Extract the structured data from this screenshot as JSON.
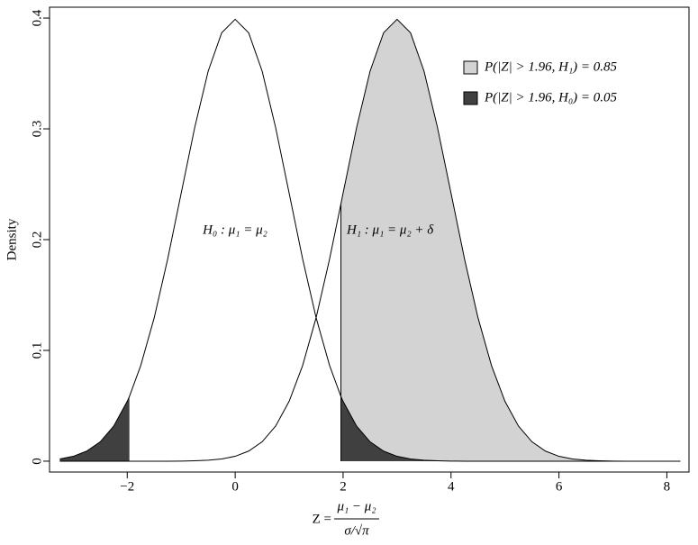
{
  "chart_data": {
    "type": "density",
    "ylabel": "Density",
    "xlabel": {
      "lhs": "Z =",
      "numerator": "μ₁ − μ₂",
      "denominator": "σ/√π"
    },
    "annotations": [
      "H₀ : μ₁ = μ₂",
      "H₁ : μ₁ = μ₂ + δ"
    ],
    "critical_value": 1.96,
    "x": [
      -3.25,
      -3,
      -2.75,
      -2.5,
      -2.25,
      -2,
      -1.96,
      -1.75,
      -1.5,
      -1.25,
      -1,
      -0.75,
      -0.5,
      -0.25,
      0,
      0.25,
      0.5,
      0.75,
      1,
      1.25,
      1.5,
      1.75,
      1.96,
      2,
      2.25,
      2.5,
      2.75,
      3,
      3.25,
      3.5,
      3.75,
      4,
      4.25,
      4.5,
      4.75,
      5,
      5.25,
      5.5,
      5.75,
      6,
      6.25,
      6.5,
      6.75,
      7,
      7.25,
      7.5,
      7.75,
      8,
      8.25
    ],
    "series": [
      {
        "name": "P(|Z| > 1.96, H₀) = 0.05",
        "color": "#404040",
        "shade": "both-tails",
        "values": [
          0.002,
          0.0044,
          0.0091,
          0.0175,
          0.0317,
          0.054,
          0.0584,
          0.0863,
          0.1295,
          0.1826,
          0.242,
          0.3011,
          0.3521,
          0.3867,
          0.3989,
          0.3867,
          0.3521,
          0.3011,
          0.242,
          0.1826,
          0.1295,
          0.0863,
          0.0584,
          0.054,
          0.0317,
          0.0175,
          0.0091,
          0.0044,
          0.002,
          0.0009,
          0.0004,
          0.0001,
          0,
          0,
          0,
          0,
          0,
          0,
          0,
          0,
          0,
          0,
          0,
          0,
          0,
          0,
          0,
          0,
          0
        ]
      },
      {
        "name": "P(|Z| > 1.96, H₁) = 0.85",
        "color": "#d3d3d3",
        "shade": "upper-tail",
        "values": [
          0,
          0,
          0,
          0,
          0,
          0,
          0,
          0,
          0,
          0,
          0.0001,
          0.0004,
          0.0009,
          0.002,
          0.0044,
          0.0091,
          0.0175,
          0.0317,
          0.054,
          0.0863,
          0.1295,
          0.1826,
          0.2323,
          0.242,
          0.3011,
          0.3521,
          0.3867,
          0.3989,
          0.3867,
          0.3521,
          0.3011,
          0.242,
          0.1826,
          0.1295,
          0.0863,
          0.054,
          0.0317,
          0.0175,
          0.0091,
          0.0044,
          0.002,
          0.0009,
          0.0004,
          0.0001,
          0,
          0,
          0,
          0,
          0
        ]
      }
    ],
    "xlim": [
      -3.44,
      8.41
    ],
    "ylim": [
      -0.0098,
      0.4098
    ],
    "xticks": [
      {
        "value": -2,
        "label": "−2"
      },
      0,
      2,
      4,
      6,
      8
    ],
    "yticks": [
      0,
      0.1,
      0.2,
      0.3,
      0.4
    ],
    "legend_position": "top-right"
  }
}
